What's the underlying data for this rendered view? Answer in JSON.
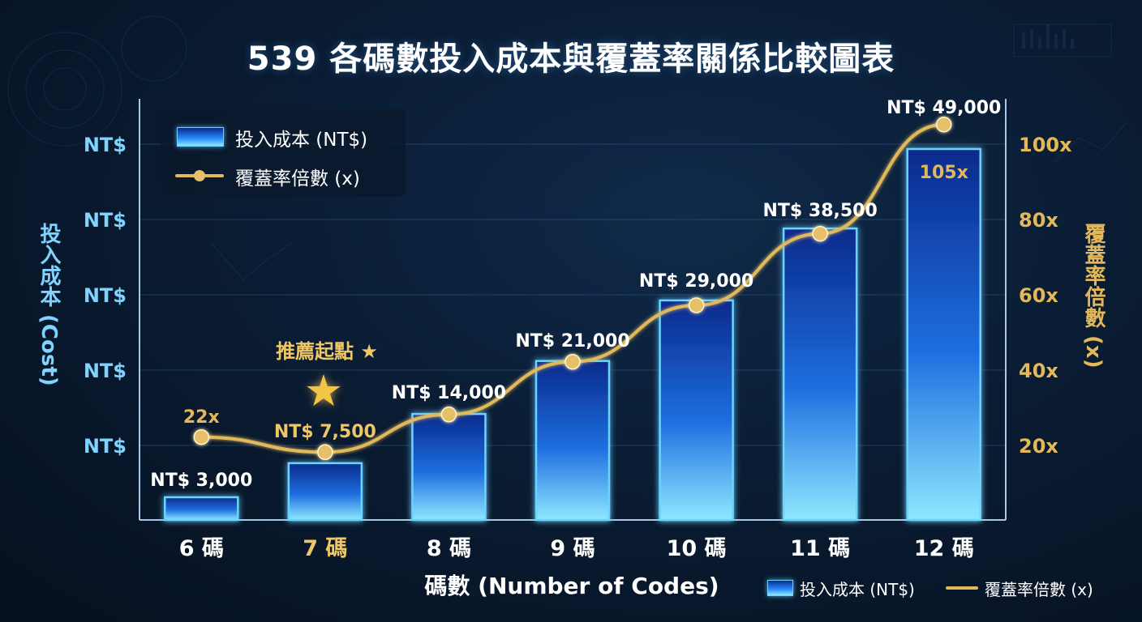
{
  "title": "539 各碼數投入成本與覆蓋率關係比較圖表",
  "legend": {
    "cost_label": "投入成本 (NT$)",
    "coverage_label": "覆蓋率倍數 (x)"
  },
  "bottom_legend": {
    "cost_label": "投入成本 (NT$)",
    "coverage_label": "覆蓋率倍數 (x)"
  },
  "annotation": {
    "recommend_label": "推薦起點 ★",
    "star_glyph": "★"
  },
  "colors": {
    "bar_top": "#0a2a8c",
    "bar_mid": "#2a8cff",
    "bar_bottom": "#8fe8ff",
    "bar_edge": "#6ad4ff",
    "line": "#e0b95c",
    "point": "#e6c068",
    "left_axis_text": "#7fd3ff",
    "right_axis_text": "#e3b85a",
    "highlight_text": "#f0c766"
  },
  "chart_data": {
    "type": "bar",
    "title": "539 各碼數投入成本與覆蓋率關係比較圖表",
    "xlabel": "碼數 (Number of Codes)",
    "ylabel": "投入成本 (Cost)",
    "y2label": "覆蓋率倍數 (x)",
    "categories": [
      "6 碼",
      "7 碼",
      "8 碼",
      "9 碼",
      "10 碼",
      "11 碼",
      "12 碼"
    ],
    "highlight_category": "7 碼",
    "left_tick_labels": [
      "NT$",
      "NT$",
      "NT$",
      "NT$",
      "NT$"
    ],
    "right_ticks": [
      20,
      40,
      60,
      80,
      100
    ],
    "right_tick_labels": [
      "20x",
      "40x",
      "60x",
      "80x",
      "100x"
    ],
    "y2lim": [
      0,
      110
    ],
    "grid": true,
    "legend_position": "top-left",
    "series": [
      {
        "name": "投入成本 (NT$)",
        "kind": "bar",
        "values": [
          3000,
          7500,
          14000,
          21000,
          29000,
          38500,
          49000
        ],
        "labels": [
          "NT$ 3,000",
          "NT$ 7,500",
          "NT$ 14,000",
          "NT$ 21,000",
          "NT$ 29,000",
          "NT$ 38,500",
          "NT$ 49,000"
        ]
      },
      {
        "name": "覆蓋率倍數 (x)",
        "kind": "line",
        "values": [
          22,
          18,
          28,
          42,
          57,
          76,
          105
        ],
        "labels": [
          "22x",
          "",
          "",
          "",
          "",
          "",
          "105x"
        ]
      }
    ]
  }
}
